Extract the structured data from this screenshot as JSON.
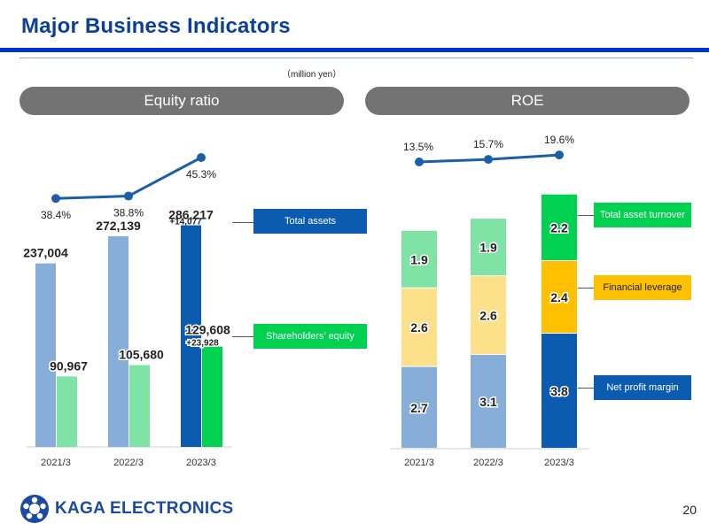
{
  "header": {
    "title": "Major Business Indicators",
    "unit": "（million yen）"
  },
  "colors": {
    "brand_blue": "#0a3f9a",
    "assets_prev": "#86aed8",
    "assets_curr": "#0b5bb0",
    "equity_prev": "#7fe3a5",
    "equity_curr": "#00d150",
    "margin_prev": "#86aed8",
    "margin_curr": "#0b5bb0",
    "leverage_prev": "#fde08a",
    "leverage_curr": "#ffc000",
    "turnover_prev": "#7fe3a5",
    "turnover_curr": "#00d150",
    "line": "#1b5fa8"
  },
  "chart_data": [
    {
      "type": "bar",
      "title": "Equity ratio",
      "categories": [
        "2021/3",
        "2022/3",
        "2023/3"
      ],
      "series": [
        {
          "name": "Total assets",
          "values": [
            237004,
            272139,
            286217
          ],
          "labels": [
            "237,004",
            "272,139",
            "286,217"
          ]
        },
        {
          "name": "Shareholders' equity",
          "values": [
            90967,
            105680,
            129608
          ],
          "labels": [
            "90,967",
            "105,680",
            "129,608"
          ]
        }
      ],
      "line_series": {
        "name": "Equity ratio",
        "values": [
          38.4,
          38.8,
          45.3
        ],
        "labels": [
          "38.4%",
          "38.8%",
          "45.3%"
        ]
      },
      "annotations": {
        "assets_change": "+14,077",
        "equity_change": "+23,928"
      },
      "legend": {
        "assets": "Total assets",
        "equity": "Shareholders’ equity"
      },
      "ylim": [
        0,
        300000
      ]
    },
    {
      "type": "bar",
      "title": "ROE",
      "stacked": true,
      "categories": [
        "2021/3",
        "2022/3",
        "2023/3"
      ],
      "series": [
        {
          "name": "Net profit margin",
          "values": [
            2.7,
            3.1,
            3.8
          ],
          "labels": [
            "2.7",
            "3.1",
            "3.8"
          ]
        },
        {
          "name": "Financial leverage",
          "values": [
            2.6,
            2.6,
            2.4
          ],
          "labels": [
            "2.6",
            "2.6",
            "2.4"
          ]
        },
        {
          "name": "Total asset turnover",
          "values": [
            1.9,
            1.9,
            2.2
          ],
          "labels": [
            "1.9",
            "1.9",
            "2.2"
          ]
        }
      ],
      "line_series": {
        "name": "ROE",
        "values": [
          13.5,
          15.7,
          19.6
        ],
        "labels": [
          "13.5%",
          "15.7%",
          "19.6%"
        ]
      },
      "legend": {
        "margin": "Net profit margin",
        "leverage": "Financial leverage",
        "turnover": "Total asset turnover"
      }
    }
  ],
  "footer": {
    "company": "KAGA ELECTRONICS",
    "page": "20"
  }
}
